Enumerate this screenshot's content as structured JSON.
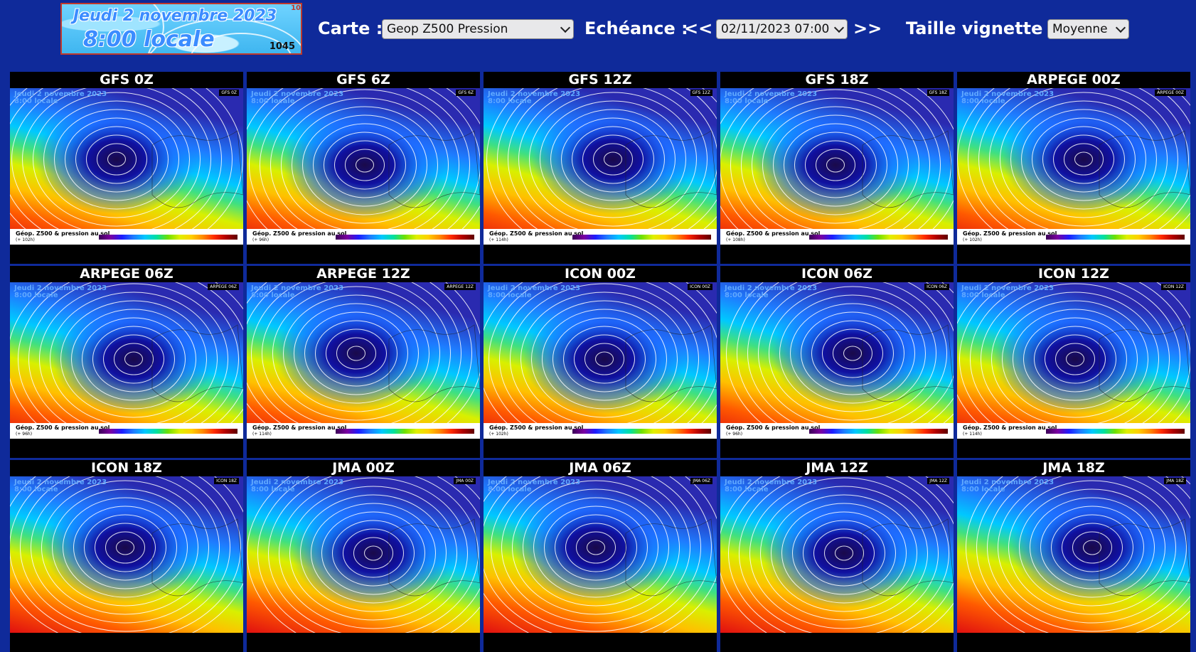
{
  "banner": {
    "line1": "Jeudi 2 novembre 2023",
    "line2": "8:00 locale",
    "number": "1045",
    "corner": "10"
  },
  "controls": {
    "carte_label": "Carte :",
    "carte_value": "Geop Z500 Pression",
    "echeance_label": "Echéance :",
    "prev": "<<",
    "echeance_value": "02/11/2023 07:00",
    "next": ">>",
    "taille_label": "Taille vignette :",
    "taille_value": "Moyenne"
  },
  "map_caption": "Géop. Z500 & pression au sol",
  "thumbnails": [
    {
      "title": "GFS 0Z",
      "lead": "(+ 102h)"
    },
    {
      "title": "GFS 6Z",
      "lead": "(+ 96h)"
    },
    {
      "title": "GFS 12Z",
      "lead": "(+ 114h)"
    },
    {
      "title": "GFS 18Z",
      "lead": "(+ 108h)"
    },
    {
      "title": "ARPEGE 00Z",
      "lead": "(+ 102h)"
    },
    {
      "title": "ARPEGE 06Z",
      "lead": "(+ 96h)"
    },
    {
      "title": "ARPEGE 12Z",
      "lead": "(+ 114h)"
    },
    {
      "title": "ICON 00Z",
      "lead": "(+ 102h)"
    },
    {
      "title": "ICON 06Z",
      "lead": "(+ 96h)"
    },
    {
      "title": "ICON 12Z",
      "lead": "(+ 114h)"
    },
    {
      "title": "ICON 18Z",
      "lead": ""
    },
    {
      "title": "JMA 00Z",
      "lead": ""
    },
    {
      "title": "JMA 06Z",
      "lead": ""
    },
    {
      "title": "JMA 12Z",
      "lead": ""
    },
    {
      "title": "JMA 18Z",
      "lead": ""
    }
  ],
  "colors": {
    "page_bg": "#0f2a9a",
    "header_text": "#ffffff"
  }
}
